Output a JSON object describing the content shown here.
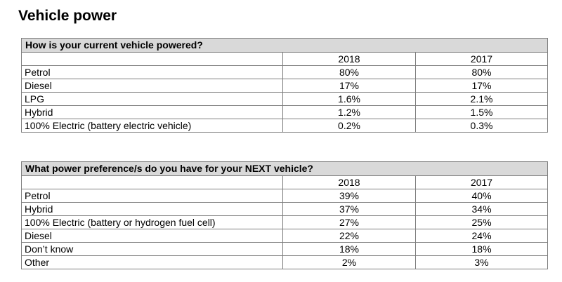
{
  "page": {
    "title": "Vehicle power"
  },
  "tables": [
    {
      "question": "How is your current vehicle powered?",
      "years": [
        "2018",
        "2017"
      ],
      "rows": [
        {
          "label": "Petrol",
          "values": [
            "80%",
            "80%"
          ]
        },
        {
          "label": "Diesel",
          "values": [
            "17%",
            "17%"
          ]
        },
        {
          "label": "LPG",
          "values": [
            "1.6%",
            "2.1%"
          ]
        },
        {
          "label": "Hybrid",
          "values": [
            "1.2%",
            "1.5%"
          ]
        },
        {
          "label": "100% Electric (battery electric vehicle)",
          "values": [
            "0.2%",
            "0.3%"
          ]
        }
      ]
    },
    {
      "question": "What power preference/s do you have for your NEXT vehicle?",
      "years": [
        "2018",
        "2017"
      ],
      "rows": [
        {
          "label": "Petrol",
          "values": [
            "39%",
            "40%"
          ]
        },
        {
          "label": "Hybrid",
          "values": [
            "37%",
            "34%"
          ]
        },
        {
          "label": "100% Electric (battery or hydrogen fuel cell)",
          "values": [
            "27%",
            "25%"
          ]
        },
        {
          "label": "Diesel",
          "values": [
            "22%",
            "24%"
          ]
        },
        {
          "label": "Don’t know",
          "values": [
            "18%",
            "18%"
          ]
        },
        {
          "label": "Other",
          "values": [
            "2%",
            "3%"
          ]
        }
      ]
    }
  ],
  "colors": {
    "header_fill": "#d9d9d9",
    "border": "#7f7f7f"
  }
}
